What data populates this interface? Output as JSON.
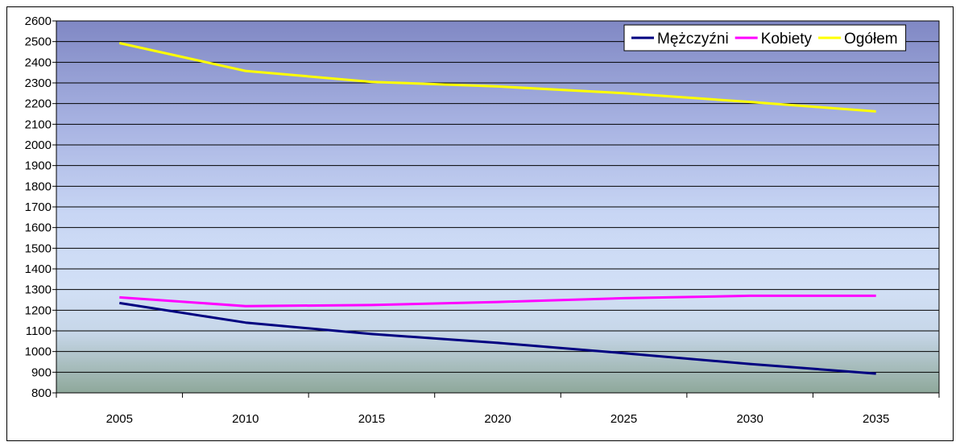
{
  "chart_data": {
    "type": "line",
    "categories": [
      "2005",
      "2010",
      "2015",
      "2020",
      "2025",
      "2030",
      "2035"
    ],
    "ylim": [
      800,
      2600
    ],
    "ystep": 100,
    "grid": true,
    "legend_position": "top-right",
    "series": [
      {
        "name": "Mężczyźni",
        "color": "#000080",
        "values": [
          1235,
          1140,
          1085,
          1042,
          992,
          940,
          893
        ]
      },
      {
        "name": "Kobiety",
        "color": "#FF00FF",
        "values": [
          1262,
          1220,
          1225,
          1240,
          1258,
          1270,
          1270
        ]
      },
      {
        "name": "Ogółem",
        "color": "#FFFF00",
        "values": [
          2493,
          2358,
          2305,
          2283,
          2250,
          2208,
          2162
        ]
      }
    ]
  }
}
